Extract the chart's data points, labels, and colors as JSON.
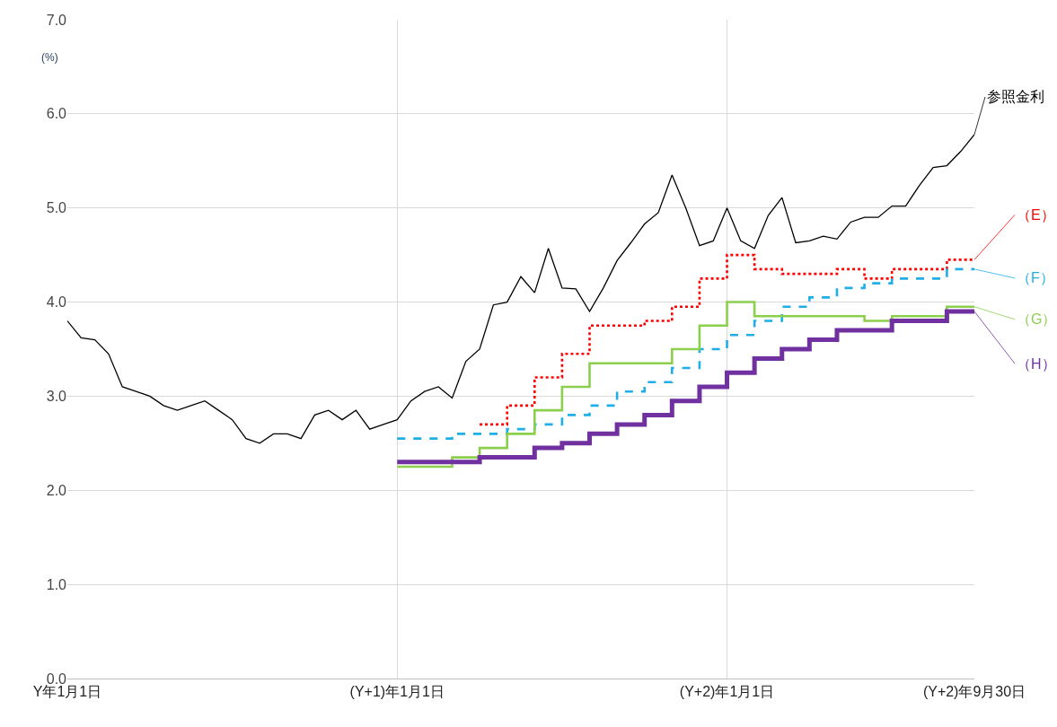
{
  "chart_data": {
    "type": "line",
    "ylabel": "(%)",
    "categories": [
      "Y年1月1日",
      null,
      null,
      null,
      null,
      null,
      null,
      null,
      null,
      null,
      null,
      null,
      null,
      null,
      null,
      null,
      null,
      null,
      null,
      null,
      null,
      null,
      null,
      null,
      "(Y+1)年1月1日",
      null,
      null,
      null,
      null,
      null,
      null,
      null,
      null,
      null,
      null,
      null,
      null,
      null,
      null,
      null,
      null,
      null,
      null,
      null,
      null,
      null,
      null,
      null,
      "(Y+2)年1月1日",
      null,
      null,
      null,
      null,
      null,
      null,
      null,
      null,
      null,
      null,
      null,
      null,
      null,
      null,
      null,
      null,
      null,
      "(Y+2)年9月30日"
    ],
    "ylim": [
      0,
      7
    ],
    "yticks": [
      {
        "value": 0,
        "label": "0.0"
      },
      {
        "value": 1,
        "label": "1.0"
      },
      {
        "value": 2,
        "label": "2.0"
      },
      {
        "value": 3,
        "label": "3.0"
      },
      {
        "value": 4,
        "label": "4.0"
      },
      {
        "value": 5,
        "label": "5.0"
      },
      {
        "value": 6,
        "label": "6.0"
      },
      {
        "value": 7,
        "label": "7.0"
      }
    ],
    "grid": true,
    "legend": "right",
    "marker": "none",
    "series": [
      {
        "name": "参照金利",
        "color": "#000000",
        "line_style": "solid",
        "values": [
          3.8,
          3.62,
          3.6,
          3.45,
          3.1,
          3.05,
          3.0,
          2.9,
          2.85,
          2.9,
          2.95,
          2.85,
          2.75,
          2.55,
          2.5,
          2.6,
          2.6,
          2.55,
          2.8,
          2.85,
          2.75,
          2.85,
          2.65,
          2.7,
          2.75,
          2.95,
          3.05,
          3.1,
          2.98,
          3.37,
          3.5,
          3.97,
          4.0,
          4.27,
          4.1,
          4.57,
          4.15,
          4.14,
          3.9,
          4.15,
          4.44,
          4.63,
          4.83,
          4.95,
          5.35,
          5.0,
          4.6,
          4.65,
          5.0,
          4.65,
          4.57,
          4.92,
          5.11,
          4.63,
          4.65,
          4.7,
          4.67,
          4.85,
          4.9,
          4.9,
          5.02,
          5.02,
          5.24,
          5.43,
          5.45,
          5.6,
          5.78
        ]
      },
      {
        "name": "（E）",
        "type": "step",
        "color": "#ff0000",
        "line_style": "dotted",
        "values": [
          null,
          null,
          null,
          null,
          null,
          null,
          null,
          null,
          null,
          null,
          null,
          null,
          null,
          null,
          null,
          null,
          null,
          null,
          null,
          null,
          null,
          null,
          null,
          null,
          null,
          null,
          null,
          null,
          null,
          null,
          2.7,
          2.7,
          2.9,
          2.9,
          3.2,
          3.2,
          3.45,
          3.45,
          3.75,
          3.75,
          3.75,
          3.75,
          3.8,
          3.8,
          3.95,
          3.95,
          4.25,
          4.25,
          4.5,
          4.5,
          4.35,
          4.35,
          4.3,
          4.3,
          4.3,
          4.3,
          4.35,
          4.35,
          4.25,
          4.25,
          4.35,
          4.35,
          4.35,
          4.35,
          4.45,
          4.45,
          4.45
        ]
      },
      {
        "name": "（F）",
        "type": "step",
        "color": "#1eaee8",
        "line_style": "dashed",
        "values": [
          null,
          null,
          null,
          null,
          null,
          null,
          null,
          null,
          null,
          null,
          null,
          null,
          null,
          null,
          null,
          null,
          null,
          null,
          null,
          null,
          null,
          null,
          null,
          null,
          2.55,
          2.55,
          2.55,
          2.55,
          2.6,
          2.6,
          2.6,
          2.6,
          2.65,
          2.65,
          2.7,
          2.7,
          2.8,
          2.8,
          2.9,
          2.9,
          3.05,
          3.05,
          3.15,
          3.15,
          3.3,
          3.3,
          3.5,
          3.5,
          3.65,
          3.65,
          3.8,
          3.8,
          3.95,
          3.95,
          4.05,
          4.05,
          4.15,
          4.15,
          4.2,
          4.2,
          4.25,
          4.25,
          4.25,
          4.25,
          4.35,
          4.35,
          4.35
        ]
      },
      {
        "name": "（G）",
        "type": "step",
        "color": "#8ccf4d",
        "line_style": "solid",
        "values": [
          null,
          null,
          null,
          null,
          null,
          null,
          null,
          null,
          null,
          null,
          null,
          null,
          null,
          null,
          null,
          null,
          null,
          null,
          null,
          null,
          null,
          null,
          null,
          null,
          2.25,
          2.25,
          2.25,
          2.25,
          2.35,
          2.35,
          2.45,
          2.45,
          2.6,
          2.6,
          2.85,
          2.85,
          3.1,
          3.1,
          3.35,
          3.35,
          3.35,
          3.35,
          3.35,
          3.35,
          3.5,
          3.5,
          3.75,
          3.75,
          4.0,
          4.0,
          3.85,
          3.85,
          3.85,
          3.85,
          3.85,
          3.85,
          3.85,
          3.85,
          3.8,
          3.8,
          3.85,
          3.85,
          3.85,
          3.85,
          3.95,
          3.95,
          3.95
        ]
      },
      {
        "name": "（H）",
        "type": "step",
        "color": "#7030a0",
        "line_style": "solid",
        "values": [
          null,
          null,
          null,
          null,
          null,
          null,
          null,
          null,
          null,
          null,
          null,
          null,
          null,
          null,
          null,
          null,
          null,
          null,
          null,
          null,
          null,
          null,
          null,
          null,
          2.3,
          2.3,
          2.3,
          2.3,
          2.3,
          2.3,
          2.35,
          2.35,
          2.35,
          2.35,
          2.45,
          2.45,
          2.5,
          2.5,
          2.6,
          2.6,
          2.7,
          2.7,
          2.8,
          2.8,
          2.95,
          2.95,
          3.1,
          3.1,
          3.25,
          3.25,
          3.4,
          3.4,
          3.5,
          3.5,
          3.6,
          3.6,
          3.7,
          3.7,
          3.7,
          3.7,
          3.8,
          3.8,
          3.8,
          3.8,
          3.9,
          3.9,
          3.9
        ]
      }
    ]
  }
}
